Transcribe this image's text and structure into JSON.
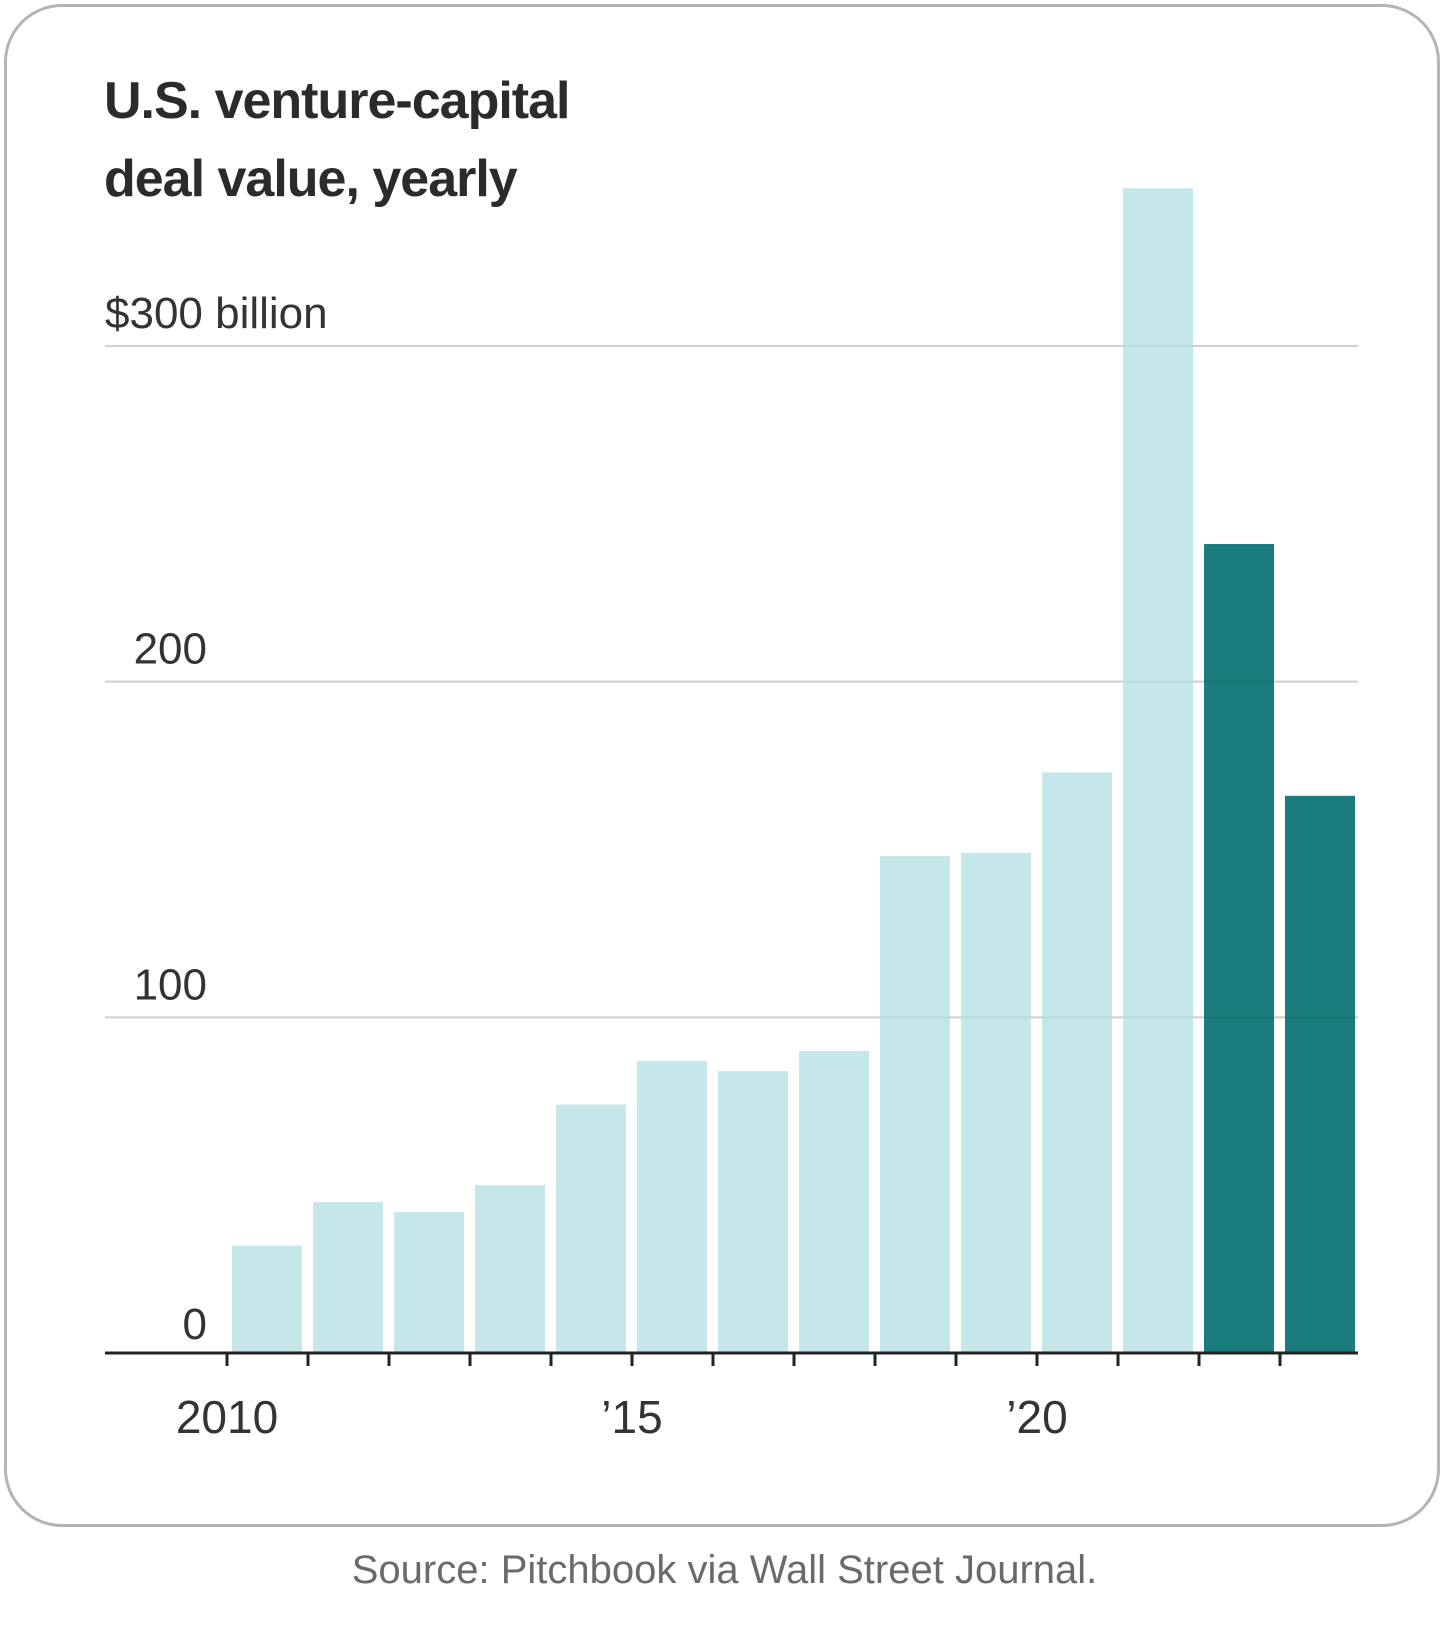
{
  "chart_data": {
    "type": "bar",
    "title_lines": [
      "U.S. venture-capital",
      "deal value, yearly"
    ],
    "categories": [
      "2010",
      "2011",
      "2012",
      "2013",
      "2014",
      "2015",
      "2016",
      "2017",
      "2018",
      "2019",
      "2020",
      "2021",
      "2022",
      "2023"
    ],
    "values": [
      32,
      45,
      42,
      50,
      74,
      87,
      84,
      90,
      148,
      149,
      173,
      347,
      241,
      166
    ],
    "highlight": [
      false,
      false,
      false,
      false,
      false,
      false,
      false,
      false,
      false,
      false,
      false,
      false,
      true,
      true
    ],
    "colors": {
      "base": "#c6e7ea",
      "highlight": "#1a7c7c",
      "axis": "#222222",
      "grid": "#dcdcdc"
    },
    "y_ticks": [
      {
        "value": 0,
        "label": "0"
      },
      {
        "value": 100,
        "label": "100"
      },
      {
        "value": 200,
        "label": "200"
      },
      {
        "value": 300,
        "label": "$300 billion"
      }
    ],
    "x_tick_labels": [
      {
        "category": "2010",
        "label": "2010"
      },
      {
        "category": "2015",
        "label": "’15"
      },
      {
        "category": "2020",
        "label": "’20"
      }
    ],
    "ylim": [
      0,
      350
    ],
    "grid": true,
    "xlabel": "",
    "ylabel": ""
  },
  "source": "Source: Pitchbook via Wall Street Journal."
}
